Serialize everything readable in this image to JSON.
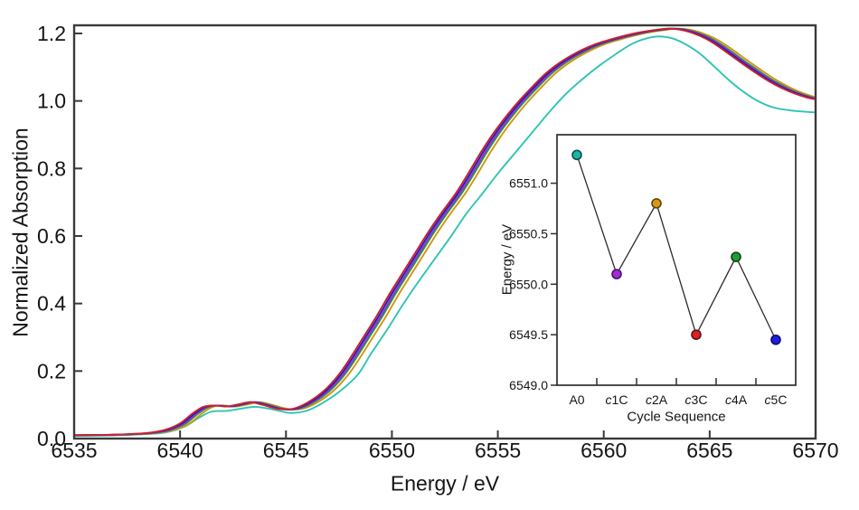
{
  "colors": {
    "background": "#ffffff",
    "frame": "#3a3a3a",
    "inset_frame": "#2e2e2e",
    "text": "#151515",
    "inset_line": "#2b2b2b"
  },
  "chart_data": [
    {
      "id": "main_spectra",
      "type": "line",
      "title": "",
      "xlabel": "Energy / eV",
      "ylabel": "Normalized Absorption",
      "xlim": [
        6535,
        6570
      ],
      "ylim": [
        0,
        1.224
      ],
      "xticks": [
        6535,
        6540,
        6545,
        6550,
        6555,
        6560,
        6565,
        6570
      ],
      "ytick_values": [
        0.0,
        0.2,
        0.4,
        0.6,
        0.8,
        1.0,
        1.2
      ],
      "ytick_labels": [
        "0.0",
        "0.2",
        "0.4",
        "0.6",
        "0.8",
        "1.0",
        "1.2"
      ],
      "grid": false,
      "legend": "none",
      "base_curve_points": [
        [
          6535.0,
          0.01
        ],
        [
          6536.5,
          0.011
        ],
        [
          6537.5,
          0.013
        ],
        [
          6538.5,
          0.017
        ],
        [
          6539.3,
          0.026
        ],
        [
          6540.0,
          0.045
        ],
        [
          6540.6,
          0.075
        ],
        [
          6541.1,
          0.094
        ],
        [
          6541.6,
          0.098
        ],
        [
          6542.2,
          0.095
        ],
        [
          6542.8,
          0.102
        ],
        [
          6543.3,
          0.108
        ],
        [
          6543.9,
          0.1
        ],
        [
          6544.6,
          0.088
        ],
        [
          6545.3,
          0.088
        ],
        [
          6546.0,
          0.106
        ],
        [
          6546.8,
          0.142
        ],
        [
          6547.5,
          0.19
        ],
        [
          6548.1,
          0.245
        ],
        [
          6548.7,
          0.305
        ],
        [
          6549.3,
          0.365
        ],
        [
          6549.9,
          0.43
        ],
        [
          6550.5,
          0.49
        ],
        [
          6551.1,
          0.55
        ],
        [
          6551.7,
          0.61
        ],
        [
          6552.3,
          0.665
        ],
        [
          6553.0,
          0.725
        ],
        [
          6553.6,
          0.785
        ],
        [
          6554.2,
          0.848
        ],
        [
          6554.8,
          0.905
        ],
        [
          6555.4,
          0.955
        ],
        [
          6556.0,
          1.0
        ],
        [
          6556.6,
          1.04
        ],
        [
          6557.2,
          1.078
        ],
        [
          6557.8,
          1.108
        ],
        [
          6558.4,
          1.132
        ],
        [
          6559.0,
          1.152
        ],
        [
          6559.6,
          1.168
        ],
        [
          6560.2,
          1.18
        ],
        [
          6560.9,
          1.192
        ],
        [
          6561.6,
          1.202
        ],
        [
          6562.3,
          1.209
        ],
        [
          6563.0,
          1.214
        ],
        [
          6563.6,
          1.211
        ],
        [
          6564.2,
          1.201
        ],
        [
          6564.8,
          1.185
        ],
        [
          6565.4,
          1.162
        ],
        [
          6566.0,
          1.135
        ],
        [
          6566.6,
          1.108
        ],
        [
          6567.2,
          1.082
        ],
        [
          6567.8,
          1.058
        ],
        [
          6568.4,
          1.038
        ],
        [
          6569.0,
          1.022
        ],
        [
          6569.6,
          1.01
        ],
        [
          6570.0,
          1.005
        ]
      ],
      "series": [
        {
          "name": "A0",
          "color": "#2ec4b4",
          "points": [
            [
              6535.0,
              0.008
            ],
            [
              6536.5,
              0.009
            ],
            [
              6538.0,
              0.012
            ],
            [
              6539.3,
              0.018
            ],
            [
              6540.2,
              0.035
            ],
            [
              6540.9,
              0.062
            ],
            [
              6541.5,
              0.08
            ],
            [
              6542.2,
              0.082
            ],
            [
              6543.0,
              0.09
            ],
            [
              6543.6,
              0.094
            ],
            [
              6544.4,
              0.086
            ],
            [
              6545.2,
              0.076
            ],
            [
              6546.0,
              0.083
            ],
            [
              6546.8,
              0.108
            ],
            [
              6547.6,
              0.143
            ],
            [
              6548.4,
              0.19
            ],
            [
              6549.0,
              0.25
            ],
            [
              6549.8,
              0.325
            ],
            [
              6550.5,
              0.395
            ],
            [
              6551.2,
              0.46
            ],
            [
              6552.0,
              0.53
            ],
            [
              6552.8,
              0.6
            ],
            [
              6553.5,
              0.665
            ],
            [
              6554.2,
              0.72
            ],
            [
              6555.0,
              0.785
            ],
            [
              6555.8,
              0.845
            ],
            [
              6556.6,
              0.905
            ],
            [
              6557.4,
              0.965
            ],
            [
              6558.2,
              1.02
            ],
            [
              6559.0,
              1.065
            ],
            [
              6559.8,
              1.105
            ],
            [
              6560.6,
              1.14
            ],
            [
              6561.3,
              1.168
            ],
            [
              6562.0,
              1.185
            ],
            [
              6562.6,
              1.191
            ],
            [
              6563.2,
              1.186
            ],
            [
              6563.8,
              1.17
            ],
            [
              6564.5,
              1.142
            ],
            [
              6565.2,
              1.103
            ],
            [
              6565.9,
              1.062
            ],
            [
              6566.6,
              1.027
            ],
            [
              6567.3,
              0.999
            ],
            [
              6568.0,
              0.981
            ],
            [
              6568.8,
              0.972
            ],
            [
              6569.5,
              0.968
            ],
            [
              6570.0,
              0.966
            ]
          ]
        },
        {
          "name": "c2A",
          "color": "#d2950f",
          "shift": 0.45
        },
        {
          "name": "c4A",
          "color": "#1f9a3c",
          "shift": 0.28
        },
        {
          "name": "c1C",
          "color": "#9a2fd2",
          "shift": 0.2
        },
        {
          "name": "c5C",
          "color": "#1c20bb",
          "shift": 0.1
        },
        {
          "name": "c3C",
          "color": "#d0202b",
          "shift": 0.0
        }
      ]
    },
    {
      "id": "inset_edge_energy",
      "type": "scatter",
      "title": "",
      "xlabel": "Cycle Sequence",
      "ylabel": "Energy / eV",
      "categories": [
        "A0",
        "c1C",
        "c2A",
        "c3C",
        "c4A",
        "c5C"
      ],
      "values": [
        6551.28,
        6550.1,
        6550.8,
        6549.5,
        6550.27,
        6549.45
      ],
      "point_colors": [
        "#1db4a8",
        "#a22ad8",
        "#d89a16",
        "#d8232b",
        "#1f9e33",
        "#1e1ee0"
      ],
      "ylim": [
        6549.0,
        6551.48
      ],
      "yticks": [
        6549.0,
        6549.5,
        6550.0,
        6550.5,
        6551.0
      ],
      "ytick_labels": [
        "6549.0",
        "6549.5",
        "6550.0",
        "6550.5",
        "6551.0"
      ],
      "grid": false,
      "legend": "none"
    }
  ]
}
